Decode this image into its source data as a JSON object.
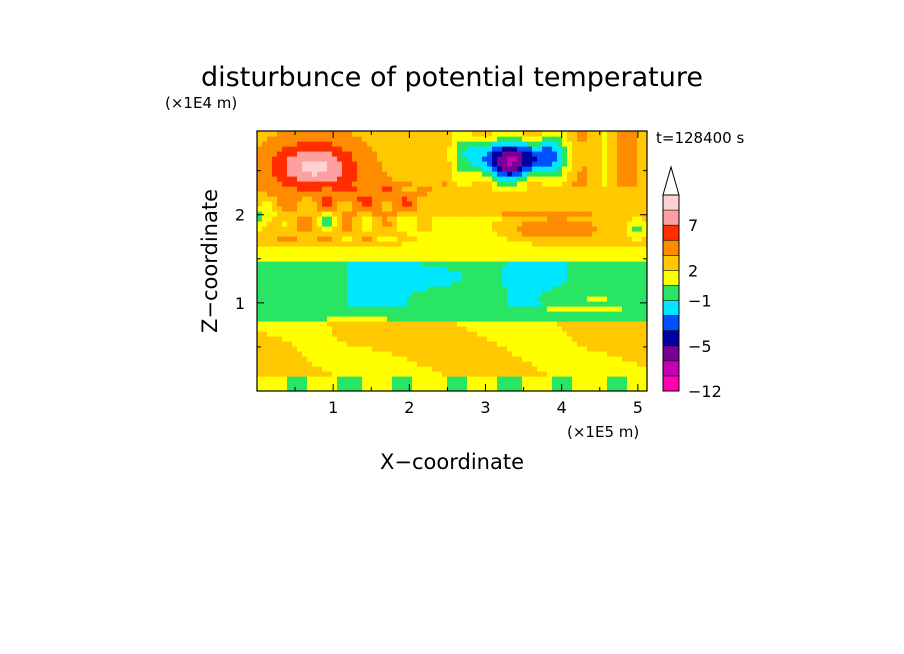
{
  "chart_data": {
    "type": "heatmap",
    "title": "disturbunce of potential temperature",
    "xlabel": "X−coordinate",
    "ylabel": "Z−coordinate",
    "x_unit": "(×1E5 m)",
    "y_unit": "(×1E4 m)",
    "time_label": "t=128400 s",
    "xlim": [
      0,
      5.12
    ],
    "ylim": [
      0,
      2.95
    ],
    "x_ticks": [
      {
        "value": 1,
        "label": "1"
      },
      {
        "value": 2,
        "label": "2"
      },
      {
        "value": 3,
        "label": "3"
      },
      {
        "value": 4,
        "label": "4"
      },
      {
        "value": 5,
        "label": "5"
      }
    ],
    "y_ticks": [
      {
        "value": 1,
        "label": "1"
      },
      {
        "value": 2,
        "label": "2"
      }
    ],
    "colorbar": {
      "levels": [
        {
          "color": "#ff00b4"
        },
        {
          "color": "#c800b4"
        },
        {
          "color": "#780096"
        },
        {
          "color": "#0000a0"
        },
        {
          "color": "#0050ff"
        },
        {
          "color": "#00e6ff"
        },
        {
          "color": "#28e664"
        },
        {
          "color": "#ffff00"
        },
        {
          "color": "#ffc800"
        },
        {
          "color": "#ff8c00"
        },
        {
          "color": "#ff2d00"
        },
        {
          "color": "#ffa0a0"
        },
        {
          "color": "#ffd2d2"
        }
      ],
      "labels": [
        {
          "level_edge": 0,
          "label": "−12"
        },
        {
          "level_edge": 3,
          "label": "−5"
        },
        {
          "level_edge": 6,
          "label": "−1"
        },
        {
          "level_edge": 8,
          "label": "2"
        },
        {
          "level_edge": 11,
          "label": "7"
        }
      ],
      "extend": "max"
    },
    "grid": false
  }
}
